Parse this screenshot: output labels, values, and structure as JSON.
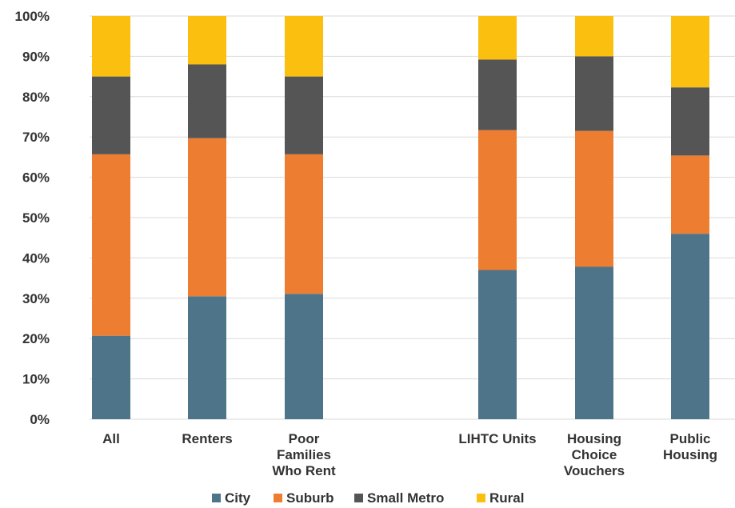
{
  "chart_data": {
    "type": "bar",
    "stacked": true,
    "title": "",
    "xlabel": "",
    "ylabel": "",
    "ylim": [
      0,
      100
    ],
    "yticks": [
      "0%",
      "10%",
      "20%",
      "30%",
      "40%",
      "50%",
      "60%",
      "70%",
      "80%",
      "90%",
      "100%"
    ],
    "grid": true,
    "legend_position": "bottom",
    "categories": [
      [
        "All"
      ],
      [
        "Renters"
      ],
      [
        "Poor",
        "Families",
        "Who Rent"
      ],
      [
        "LIHTC Units"
      ],
      [
        "Housing",
        "Choice",
        "Vouchers"
      ],
      [
        "Public",
        "Housing"
      ]
    ],
    "series": [
      {
        "name": "City",
        "color": "#4e7489",
        "values": [
          20.7,
          30.5,
          31.1,
          37.0,
          37.8,
          46.0
        ]
      },
      {
        "name": "Suburb",
        "color": "#ed7d31",
        "values": [
          45.0,
          39.2,
          34.6,
          34.7,
          33.7,
          19.4
        ]
      },
      {
        "name": "Small Metro",
        "color": "#555555",
        "values": [
          19.3,
          18.3,
          19.3,
          17.5,
          18.5,
          16.9
        ]
      },
      {
        "name": "Rural",
        "color": "#fbc00f",
        "values": [
          15.0,
          12.0,
          15.0,
          10.8,
          10.0,
          17.7
        ]
      }
    ]
  }
}
